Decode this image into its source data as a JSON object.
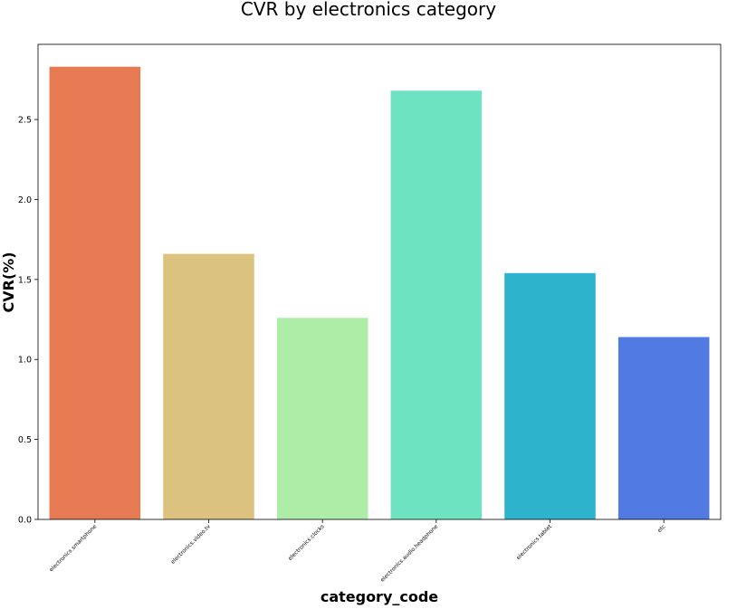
{
  "chart_data": {
    "type": "bar",
    "title": "CVR by electronics category",
    "xlabel": "category_code",
    "ylabel": "CVR(%)",
    "categories": [
      "electronics.smartphone",
      "electronics.video.tv",
      "electronics.clocks",
      "electronics.audio.headphone",
      "electronics.tablet",
      "etc"
    ],
    "values": [
      2.83,
      1.66,
      1.26,
      2.68,
      1.54,
      1.14
    ],
    "colors": [
      "#e67a53",
      "#dcc27f",
      "#adeda8",
      "#6de3c2",
      "#2db3cb",
      "#517ae3"
    ],
    "ylim": [
      0,
      2.97
    ],
    "yticks": [
      "0.0",
      "0.5",
      "1.0",
      "1.5",
      "2.0",
      "2.5"
    ],
    "grid": false,
    "legend": "none"
  }
}
